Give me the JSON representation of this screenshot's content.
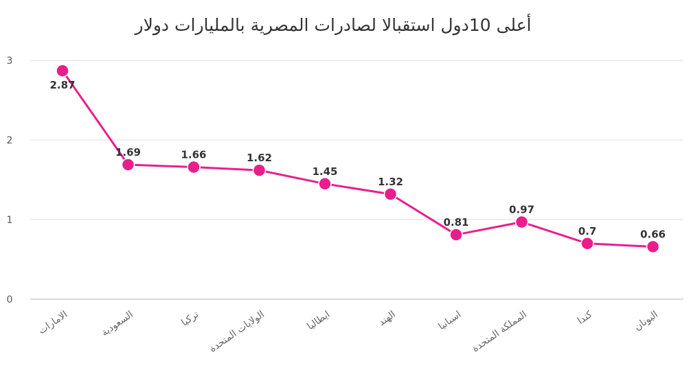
{
  "chart_data": {
    "type": "line",
    "title": "أعلى 10دول استقبالا لصادرات المصرية بالمليارات دولار",
    "xlabel": "",
    "ylabel": "",
    "categories": [
      "الامارات",
      "السعودية",
      "تركيا",
      "الولايات المتحدة",
      "ايطاليا",
      "الهند",
      "اسبانيا",
      "المملكة المتحدة",
      "كندا",
      "اليونان"
    ],
    "series": [
      {
        "values": [
          2.87,
          1.69,
          1.66,
          1.62,
          1.45,
          1.32,
          0.81,
          0.97,
          0.7,
          0.66
        ]
      }
    ],
    "data_labels": [
      "2.87",
      "1.69",
      "1.66",
      "1.62",
      "1.45",
      "1.32",
      "0.81",
      "0.97",
      "0.7",
      "0.66"
    ],
    "ylim": [
      0,
      3
    ],
    "yticks": [
      0,
      1,
      2,
      3
    ],
    "grid": true,
    "legend": "none",
    "colors": {
      "series": "#e91e8c",
      "grid": "#e4e4e4",
      "text": "#333333"
    }
  }
}
